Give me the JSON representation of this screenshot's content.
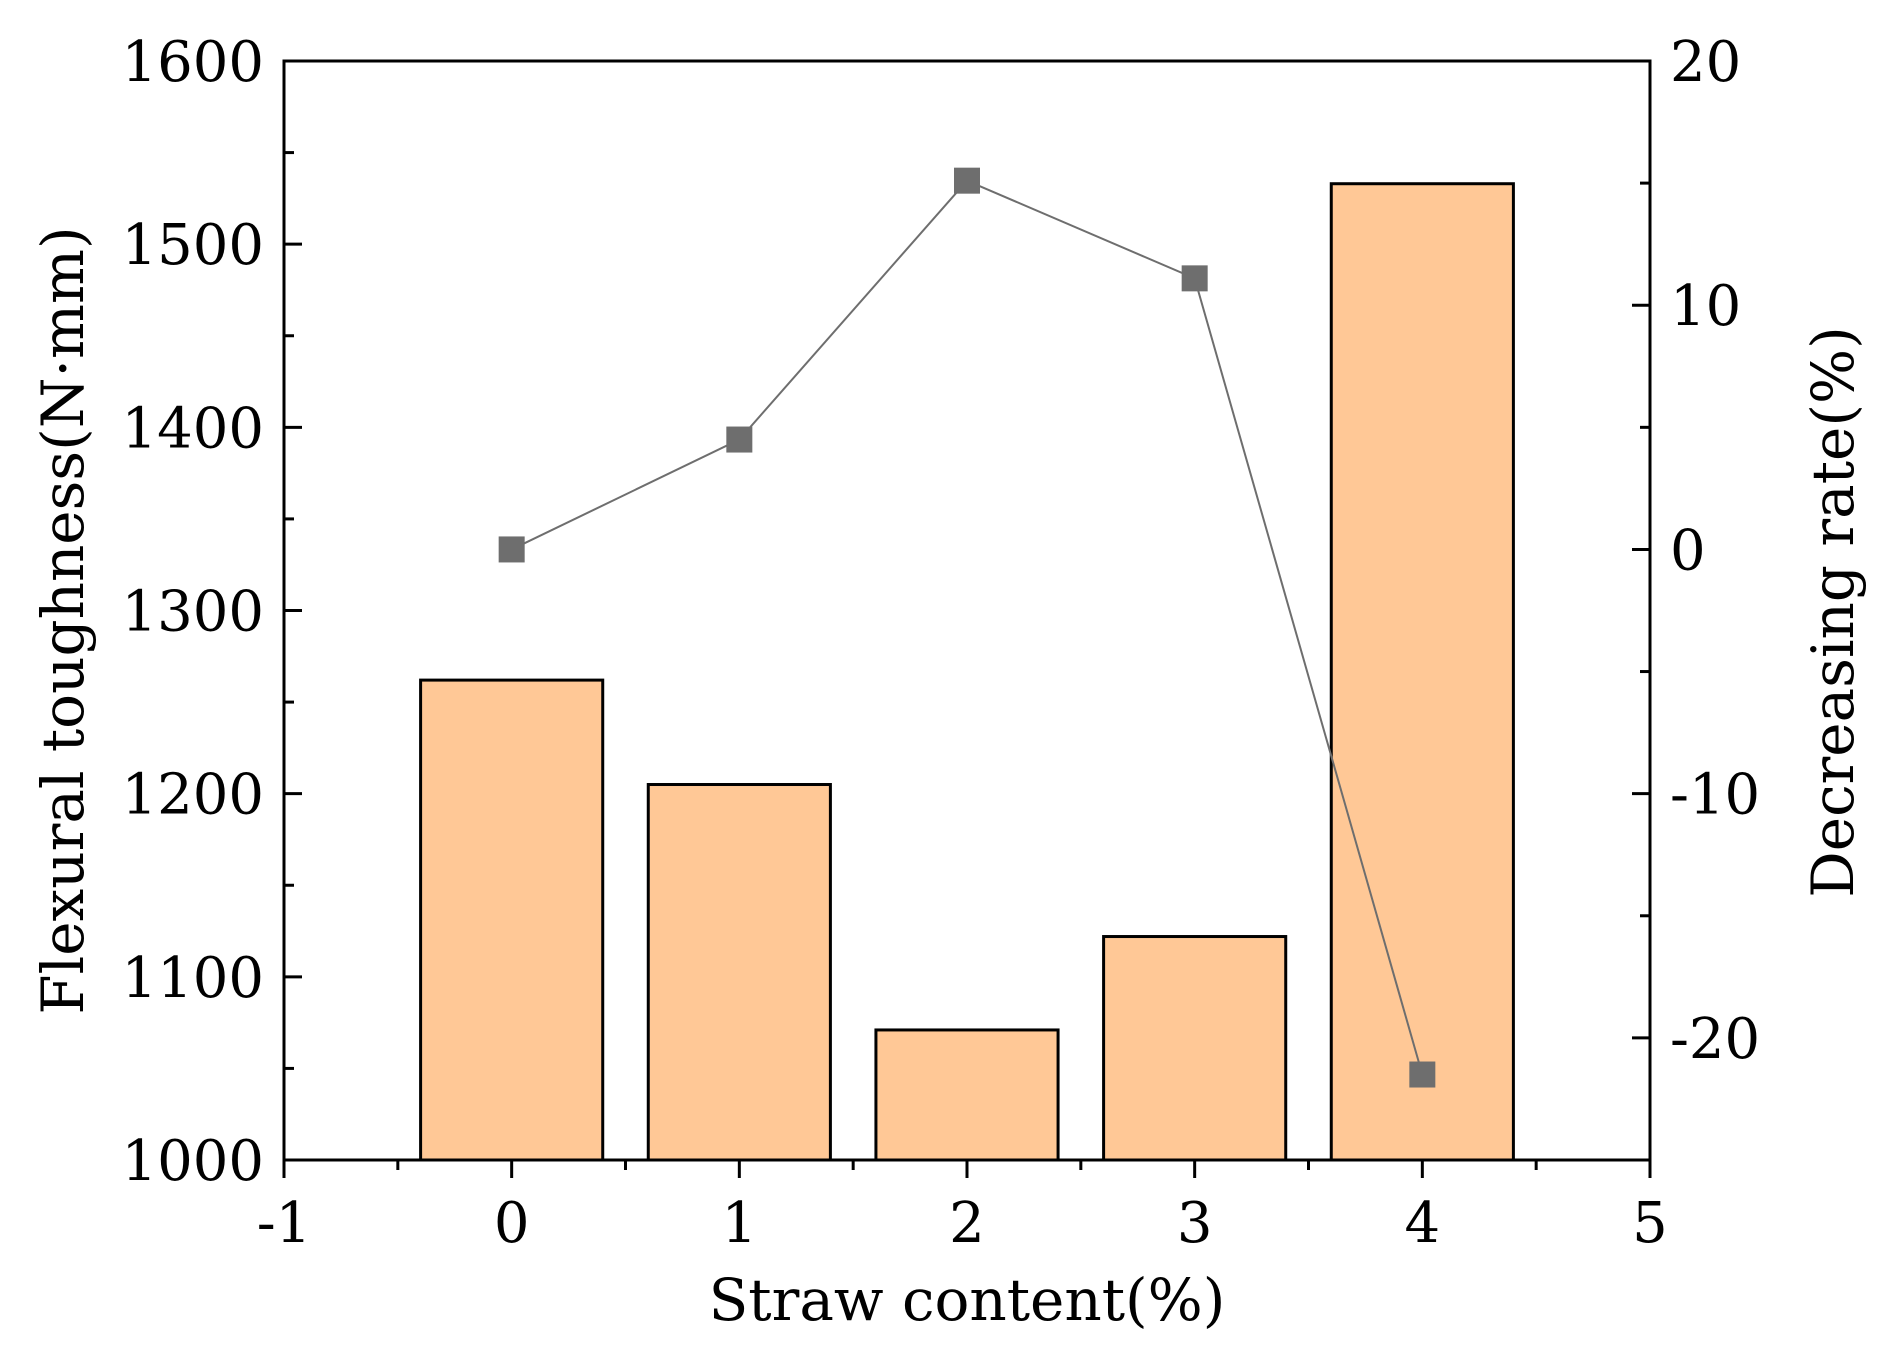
{
  "chart_data": {
    "type": "bar",
    "xlabel": "Straw content(%)",
    "ylabel": "Flexural toughness(N·mm)",
    "y2label": "Decreasing rate(%)",
    "xlim": [
      -1,
      5
    ],
    "ylim": [
      1000,
      1600
    ],
    "y2lim": [
      -25,
      20
    ],
    "x_ticks": [
      "-1",
      "0",
      "1",
      "2",
      "3",
      "4",
      "5"
    ],
    "y_ticks": [
      "1000",
      "1100",
      "1200",
      "1300",
      "1400",
      "1500",
      "1600"
    ],
    "y2_ticks": [
      "-20",
      "-10",
      "0",
      "10",
      "20"
    ],
    "grid": false,
    "bar_color": "#FFC896",
    "line_color": "#6E6E6E",
    "series": [
      {
        "chart": "bar",
        "axis": "left",
        "x": [
          0,
          1,
          2,
          3,
          4
        ],
        "values": [
          1262,
          1205,
          1071,
          1122,
          1533
        ]
      },
      {
        "chart": "line",
        "axis": "right",
        "x": [
          0,
          1,
          2,
          3,
          4
        ],
        "values": [
          0,
          4.5,
          15.1,
          11.1,
          -21.5
        ]
      }
    ]
  }
}
